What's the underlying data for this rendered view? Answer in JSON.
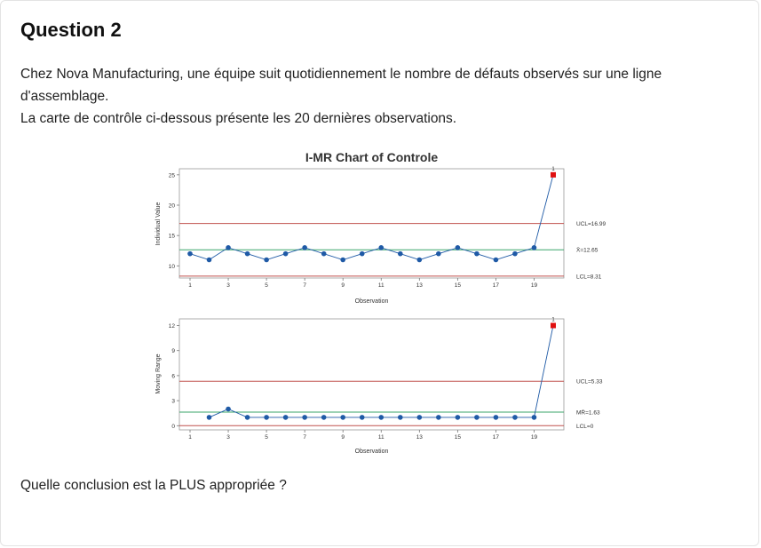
{
  "question": {
    "title": "Question 2",
    "paragraph1": "Chez Nova Manufacturing, une équipe suit quotidiennement le nombre de défauts observés sur une ligne d'assemblage.",
    "paragraph2": "La carte de contrôle ci-dessous présente les 20 dernières observations.",
    "prompt": "Quelle conclusion est la PLUS appropriée ?"
  },
  "chart_data": [
    {
      "type": "line",
      "chart_title": "I-MR Chart of Controle",
      "ylabel": "Individual Value",
      "xlabel": "Observation",
      "ylim": [
        8,
        26
      ],
      "yticks": [
        10,
        15,
        20,
        25
      ],
      "x": [
        1,
        2,
        3,
        4,
        5,
        6,
        7,
        8,
        9,
        10,
        11,
        12,
        13,
        14,
        15,
        16,
        17,
        18,
        19,
        20
      ],
      "xticks": [
        1,
        3,
        5,
        7,
        9,
        11,
        13,
        15,
        17,
        19
      ],
      "values": [
        12,
        11,
        13,
        12,
        11,
        12,
        13,
        12,
        11,
        12,
        13,
        12,
        11,
        12,
        13,
        12,
        11,
        12,
        13,
        25
      ],
      "out_of_control": [
        20
      ],
      "limits": [
        {
          "label": "UCL=16.99",
          "value": 16.99,
          "color": "#c0504d"
        },
        {
          "label": "X̄=12.65",
          "value": 12.65,
          "color": "#3aa66a"
        },
        {
          "label": "LCL=8.31",
          "value": 8.31,
          "color": "#c0504d"
        }
      ],
      "point_color": "#1f5aa6",
      "alarm_color": "#e01010"
    },
    {
      "type": "line",
      "ylabel": "Moving Range",
      "xlabel": "Observation",
      "ylim": [
        -0.5,
        12.8
      ],
      "yticks": [
        0,
        3,
        6,
        9,
        12
      ],
      "x": [
        2,
        3,
        4,
        5,
        6,
        7,
        8,
        9,
        10,
        11,
        12,
        13,
        14,
        15,
        16,
        17,
        18,
        19,
        20
      ],
      "xticks": [
        1,
        3,
        5,
        7,
        9,
        11,
        13,
        15,
        17,
        19
      ],
      "values": [
        1,
        2,
        1,
        1,
        1,
        1,
        1,
        1,
        1,
        1,
        1,
        1,
        1,
        1,
        1,
        1,
        1,
        1,
        12
      ],
      "out_of_control": [
        20
      ],
      "limits": [
        {
          "label": "UCL=5.33",
          "value": 5.33,
          "color": "#c0504d"
        },
        {
          "label": "MR̄=1.63",
          "value": 1.63,
          "color": "#3aa66a"
        },
        {
          "label": "LCL=0",
          "value": 0,
          "color": "#c0504d"
        }
      ],
      "point_color": "#1f5aa6",
      "alarm_color": "#e01010"
    }
  ]
}
